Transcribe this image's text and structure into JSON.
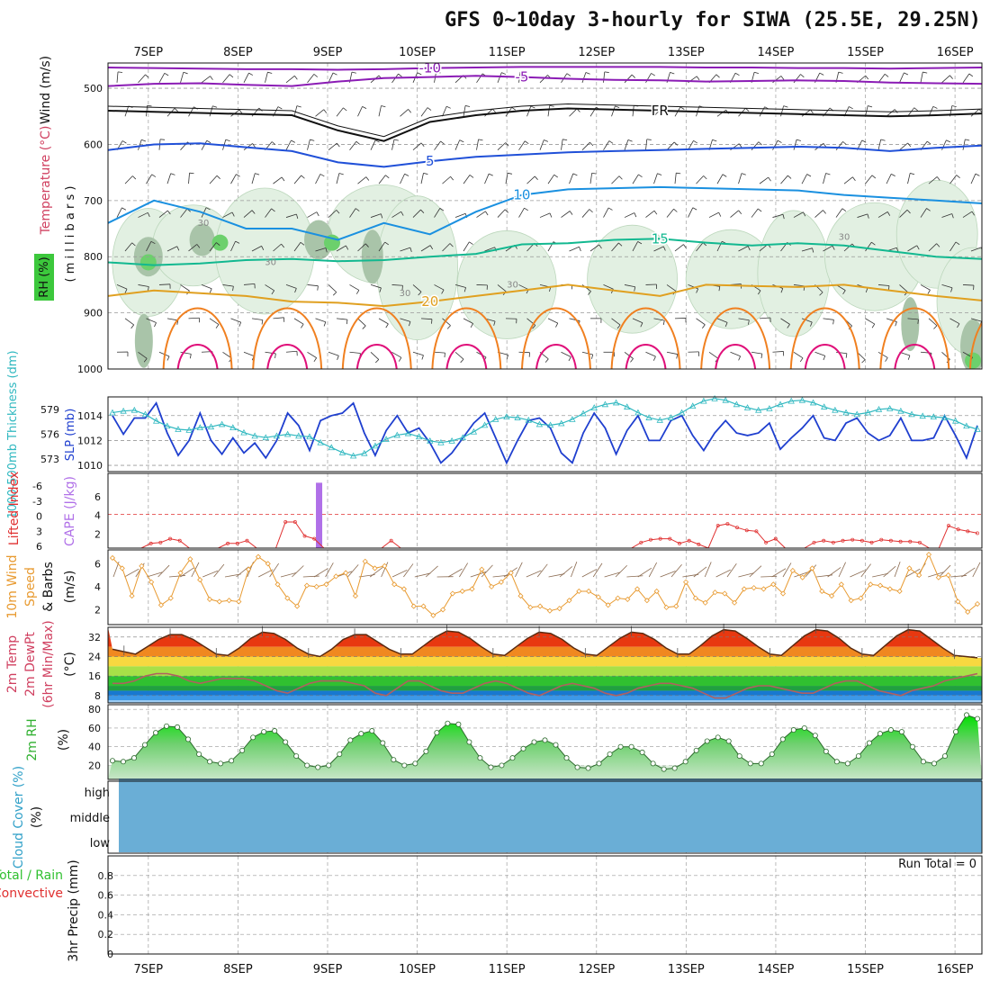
{
  "title": "GFS 0~10day 3-hourly for SIWA (25.5E, 29.25N)",
  "x_axis": {
    "date_labels": [
      "7SEP",
      "8SEP",
      "9SEP",
      "10SEP",
      "11SEP",
      "12SEP",
      "13SEP",
      "14SEP",
      "15SEP",
      "16SEP"
    ],
    "time_domain_days": [
      -0.45,
      9.3
    ]
  },
  "colors": {
    "temp_purple": "#8b1cb5",
    "temp_black": "#111111",
    "temp_blue": "#2050d8",
    "temp_sky": "#1a90e0",
    "temp_teal": "#12b890",
    "temp_gold": "#e0a020",
    "temp_orange": "#f08020",
    "temp_magenta": "#e0107a",
    "rh_green": "#48c048",
    "slp": "#1f3fcf",
    "thickness": "#30b8c0",
    "cape": "#b070e8",
    "lifted_index": "#e03030",
    "wind_speed": "#e89a30",
    "barbs": "#8a6a50",
    "cloud": "#6aaed6",
    "rh2m": "#40c040"
  },
  "chart_data": [
    {
      "panel": "upper_air",
      "type": "contour",
      "ylabel_wind": "Wind (m/s)",
      "ylabel_temp": "Temperature (°C)",
      "ylabel_rh": "RH (%)",
      "ylabel_pressure": "( m i l l i b a r s )",
      "y_ticks": [
        500,
        600,
        700,
        800,
        900,
        1000
      ],
      "ylim": [
        455,
        1000
      ],
      "rh_labels": [
        "30",
        "30",
        "30",
        "30",
        "30"
      ],
      "freezing_label": "FR",
      "contours": [
        {
          "label": "-10",
          "color": "#8b1cb5",
          "p": [
            463,
            464,
            465,
            466,
            466,
            467,
            466,
            464,
            463,
            462,
            462,
            462,
            462,
            463,
            463,
            464,
            464,
            465,
            464,
            463
          ]
        },
        {
          "label": "-5",
          "color": "#8b1cb5",
          "p": [
            496,
            492,
            491,
            494,
            496,
            488,
            482,
            480,
            478,
            480,
            483,
            485,
            486,
            488,
            487,
            486,
            487,
            490,
            491,
            492
          ]
        },
        {
          "label": "FR",
          "color": "#111111",
          "p": [
            540,
            542,
            544,
            546,
            548,
            575,
            594,
            560,
            548,
            540,
            536,
            538,
            540,
            542,
            544,
            546,
            548,
            550,
            548,
            545
          ]
        },
        {
          "label": "5",
          "color": "#2050d8",
          "p": [
            610,
            600,
            598,
            605,
            612,
            632,
            640,
            630,
            622,
            618,
            614,
            612,
            610,
            608,
            606,
            604,
            606,
            612,
            606,
            602
          ]
        },
        {
          "label": "10",
          "color": "#1a90e0",
          "p": [
            740,
            700,
            720,
            750,
            750,
            770,
            740,
            760,
            720,
            690,
            680,
            678,
            676,
            678,
            680,
            682,
            690,
            695,
            700,
            705
          ]
        },
        {
          "label": "15",
          "color": "#12b890",
          "p": [
            810,
            815,
            812,
            806,
            804,
            808,
            806,
            800,
            795,
            778,
            776,
            770,
            768,
            775,
            780,
            776,
            780,
            790,
            800,
            804
          ]
        },
        {
          "label": "20",
          "color": "#e0a020",
          "p": [
            870,
            860,
            865,
            870,
            880,
            882,
            888,
            880,
            870,
            860,
            850,
            860,
            870,
            850,
            852,
            854,
            850,
            860,
            870,
            878
          ]
        }
      ]
    },
    {
      "panel": "slp_thickness",
      "type": "line",
      "ylabel_left": "1000-500mb Thickness (dm)",
      "ylabel_right": "SLP (mb)",
      "thickness_ticks": [
        "579",
        "576",
        "573"
      ],
      "slp_ticks": [
        "1014",
        "1012",
        "1010"
      ],
      "slp_ylim": [
        1009.5,
        1015.5
      ],
      "thickness_ylim": [
        571.5,
        580.5
      ],
      "series": [
        {
          "name": "SLP (mb)",
          "color": "#1f3fcf",
          "values": [
            1014.0,
            1012.5,
            1013.8,
            1013.8,
            1015.0,
            1012.6,
            1010.8,
            1012.0,
            1014.2,
            1012.0,
            1010.9,
            1012.2,
            1011.0,
            1011.8,
            1010.6,
            1012.0,
            1014.2,
            1013.2,
            1011.2,
            1013.6,
            1014.0,
            1014.2,
            1015.0,
            1012.6,
            1010.8,
            1012.8,
            1014.0,
            1012.6,
            1013.0,
            1011.8,
            1010.2,
            1011.0,
            1012.2,
            1013.4,
            1014.2,
            1012.2,
            1010.2,
            1012.0,
            1013.6,
            1013.8,
            1013.0,
            1011.0,
            1010.2,
            1012.6,
            1014.2,
            1013.0,
            1010.9,
            1012.8,
            1014.0,
            1012.0,
            1012.0,
            1013.6,
            1014.0,
            1012.4,
            1011.2,
            1012.6,
            1013.6,
            1012.6,
            1012.4,
            1012.6,
            1013.4,
            1011.3,
            1012.2,
            1013.0,
            1014.0,
            1012.2,
            1012.0,
            1013.4,
            1013.8,
            1012.6,
            1012.0,
            1012.4,
            1013.8,
            1012.0,
            1012.0,
            1012.2,
            1014.0,
            1012.4,
            1010.6,
            1013.2
          ]
        },
        {
          "name": "Thickness (dm)",
          "color": "#30b8c0",
          "values": [
            578.6,
            578.8,
            578.9,
            578.4,
            577.6,
            577.0,
            576.6,
            576.5,
            576.8,
            576.9,
            577.2,
            576.8,
            576.2,
            575.8,
            575.6,
            575.8,
            576.0,
            575.8,
            575.7,
            575.0,
            574.4,
            573.8,
            573.4,
            573.7,
            574.6,
            575.4,
            575.9,
            576.1,
            575.7,
            575.2,
            575.0,
            575.2,
            575.6,
            576.3,
            577.1,
            577.8,
            578.1,
            578.0,
            577.7,
            577.2,
            577.1,
            577.3,
            577.8,
            578.5,
            579.2,
            579.6,
            579.8,
            579.3,
            578.6,
            578.0,
            577.7,
            578.0,
            578.6,
            579.4,
            580.0,
            580.3,
            580.1,
            579.6,
            579.2,
            578.9,
            579.1,
            579.6,
            580.0,
            580.1,
            579.8,
            579.3,
            578.9,
            578.6,
            578.4,
            578.6,
            579.0,
            579.1,
            578.8,
            578.4,
            578.2,
            578.1,
            578.0,
            577.6,
            577.0,
            576.6
          ]
        }
      ]
    },
    {
      "panel": "cape_li",
      "type": "bar",
      "ylabel_li": "Lifted Index",
      "ylabel_cape": "CAPE (J/kg)",
      "li_ticks": [
        "-6",
        "-3",
        "0",
        "3",
        "6"
      ],
      "cape_ticks": [
        "6",
        "4",
        "2"
      ],
      "cape_bar": {
        "day": 1.9,
        "value": 7.5
      },
      "li_zero_level": 4.1,
      "series": [
        {
          "name": "Lifted Index",
          "color": "#e03030",
          "values": [
            0,
            0,
            0,
            0,
            0.5,
            0.6,
            1.0,
            0.8,
            0,
            0,
            0,
            0,
            0.5,
            0.5,
            0.8,
            0,
            0,
            0,
            2.8,
            2.8,
            1.3,
            1.0,
            0,
            0,
            0,
            0,
            0,
            0,
            0,
            0.8,
            0,
            0,
            0,
            0,
            0,
            0,
            0,
            0,
            0,
            0,
            0,
            0,
            0,
            0,
            0,
            0,
            0,
            0,
            0,
            0,
            0,
            0,
            0,
            0,
            0,
            0.6,
            0.9,
            1.0,
            1.0,
            0.5,
            0.8,
            0.4,
            0,
            2.4,
            2.6,
            2.2,
            1.9,
            1.8,
            0.6,
            1.0,
            0,
            0,
            0,
            0.6,
            0.8,
            0.6,
            0.8,
            0.9,
            0.8,
            0.6,
            0.9,
            0.8,
            0.7,
            0.7,
            0.6,
            0,
            0,
            2.4,
            2.0,
            1.8,
            1.6
          ]
        }
      ]
    },
    {
      "panel": "wind10m",
      "type": "line",
      "ylabel": "10m Wind Speed & Barbs (m/s)",
      "y_ticks": [
        "6",
        "4",
        "2"
      ],
      "ylim": [
        0.7,
        7.2
      ],
      "series": [
        {
          "name": "Wind speed",
          "color": "#e89a30",
          "values": [
            6.5,
            5.6,
            3.2,
            5.8,
            4.4,
            2.4,
            3.0,
            5.2,
            6.4,
            4.6,
            2.9,
            2.7,
            2.8,
            2.7,
            5.5,
            6.6,
            6.0,
            4.2,
            3.0,
            2.3,
            4.1,
            4.0,
            4.2,
            4.9,
            5.2,
            3.2,
            6.2,
            5.6,
            5.8,
            4.2,
            3.8,
            2.3,
            2.3,
            1.5,
            2.0,
            3.4,
            3.6,
            3.8,
            5.5,
            4.0,
            4.4,
            5.2,
            3.2,
            2.2,
            2.3,
            1.9,
            2.1,
            2.8,
            3.6,
            3.6,
            3.1,
            2.4,
            3.0,
            2.9,
            3.8,
            2.8,
            3.6,
            2.2,
            2.3,
            4.4,
            3.0,
            2.6,
            3.5,
            3.4,
            2.6,
            3.8,
            3.9,
            3.8,
            4.2,
            3.4,
            5.4,
            4.8,
            5.6,
            3.6,
            3.2,
            4.2,
            2.8,
            3.0,
            4.2,
            4.1,
            3.8,
            3.6,
            5.6,
            5.0,
            6.8,
            4.8,
            5.0,
            2.7,
            1.8,
            2.5
          ]
        }
      ]
    },
    {
      "panel": "temp2m",
      "type": "area",
      "ylabel": "2m Temp 2m DewPt (6hr Min/Max) (°C)",
      "y_ticks": [
        "32",
        "24",
        "16",
        "8"
      ],
      "ylim": [
        5,
        36
      ],
      "series": [
        {
          "name": "Temperature",
          "color": "#804020",
          "values": [
            27.0,
            26.0,
            25.0,
            28.0,
            31.0,
            33.0,
            33.0,
            31.0,
            28.0,
            25.0,
            24.5,
            27.5,
            31.5,
            34.0,
            33.5,
            31.0,
            27.5,
            25.0,
            24.0,
            27.0,
            31.0,
            33.0,
            33.0,
            30.0,
            27.0,
            25.0,
            25.0,
            28.5,
            32.0,
            34.5,
            34.0,
            31.5,
            28.0,
            25.0,
            24.5,
            28.0,
            31.5,
            34.0,
            33.5,
            31.0,
            27.5,
            25.0,
            24.5,
            28.0,
            31.5,
            34.0,
            33.5,
            31.0,
            27.5,
            25.0,
            25.0,
            28.5,
            32.5,
            35.0,
            34.5,
            31.5,
            28.0,
            25.0,
            24.5,
            28.5,
            32.5,
            35.0,
            34.5,
            31.5,
            27.5,
            25.0,
            24.5,
            28.5,
            32.5,
            35.0,
            34.5,
            31.0,
            27.5,
            24.5,
            24.0,
            23.5
          ]
        },
        {
          "name": "DewPt",
          "color": "#b06060",
          "values": [
            13,
            13,
            14,
            16,
            17,
            17,
            16,
            14,
            13,
            14,
            15,
            15,
            15,
            14,
            12,
            10,
            9,
            11,
            13,
            14,
            14,
            14,
            13,
            12,
            9,
            8,
            11,
            14,
            14,
            12,
            10,
            9,
            9,
            11,
            13,
            14,
            13,
            11,
            9,
            8,
            10,
            12,
            13,
            12,
            11,
            9,
            8,
            9,
            11,
            12,
            13,
            13,
            12,
            11,
            9,
            7,
            7,
            9,
            11,
            12,
            12,
            11,
            10,
            9,
            9,
            11,
            13,
            14,
            14,
            12,
            10,
            9,
            8,
            10,
            11,
            12,
            14,
            15,
            16,
            17
          ]
        }
      ]
    },
    {
      "panel": "rh2m",
      "type": "area",
      "ylabel": "2m RH (%)",
      "y_ticks": [
        "80",
        "60",
        "40",
        "20"
      ],
      "ylim": [
        5,
        85
      ],
      "series": [
        {
          "name": "2m RH",
          "color": "#40c040",
          "values": [
            25,
            24,
            28,
            42,
            55,
            62,
            61,
            48,
            32,
            24,
            22,
            25,
            36,
            50,
            56,
            57,
            45,
            30,
            20,
            18,
            20,
            32,
            47,
            54,
            57,
            44,
            26,
            20,
            22,
            35,
            55,
            65,
            64,
            45,
            28,
            18,
            20,
            28,
            38,
            45,
            47,
            42,
            28,
            18,
            17,
            22,
            32,
            40,
            40,
            34,
            22,
            16,
            17,
            24,
            36,
            46,
            50,
            46,
            30,
            22,
            22,
            32,
            48,
            58,
            60,
            52,
            35,
            24,
            22,
            30,
            44,
            54,
            58,
            56,
            40,
            24,
            22,
            30,
            56,
            74,
            70
          ]
        }
      ]
    },
    {
      "panel": "cloud",
      "type": "area",
      "ylabel": "Cloud Cover (%)",
      "levels": [
        "high",
        "middle",
        "low"
      ],
      "cover_percent": 100
    },
    {
      "panel": "precip",
      "type": "bar",
      "ylabel_total": "Total / Rain",
      "ylabel_conv": "Convective",
      "ylabel": "3hr Precip (mm)",
      "y_ticks": [
        "0.8",
        "0.6",
        "0.4",
        "0.2",
        "0"
      ],
      "ylim": [
        0,
        1.0
      ],
      "values": [],
      "run_total": "Run Total = 0"
    }
  ]
}
